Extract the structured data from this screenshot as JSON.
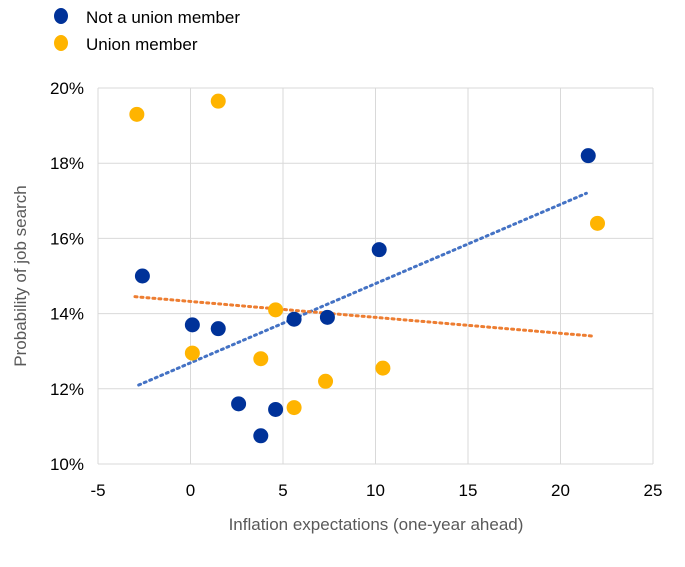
{
  "chart_data": {
    "type": "scatter",
    "title": "",
    "xlabel": "Inflation expectations (one-year ahead)",
    "ylabel": "Probability of job search",
    "xlim": [
      -5,
      25
    ],
    "ylim": [
      10,
      20
    ],
    "x_ticks": [
      -5,
      0,
      5,
      10,
      15,
      20,
      25
    ],
    "y_ticks": [
      10,
      12,
      14,
      16,
      18,
      20
    ],
    "x_tick_labels": [
      "-5",
      "0",
      "5",
      "10",
      "15",
      "20",
      "25"
    ],
    "y_tick_labels": [
      "10%",
      "12%",
      "14%",
      "16%",
      "18%",
      "20%"
    ],
    "grid": "vertical and horizontal",
    "legend_position": "top-left",
    "series": [
      {
        "name": "Not a union member",
        "color": "#003299",
        "points": [
          {
            "x": -2.6,
            "y": 15.0
          },
          {
            "x": 0.1,
            "y": 13.7
          },
          {
            "x": 1.5,
            "y": 13.6
          },
          {
            "x": 2.6,
            "y": 11.6
          },
          {
            "x": 3.8,
            "y": 10.75
          },
          {
            "x": 4.6,
            "y": 11.45
          },
          {
            "x": 5.6,
            "y": 13.85
          },
          {
            "x": 7.4,
            "y": 13.9
          },
          {
            "x": 10.2,
            "y": 15.7
          },
          {
            "x": 21.5,
            "y": 18.2
          }
        ],
        "trendline": {
          "color": "#4472C4",
          "from": {
            "x": -2.8,
            "y": 12.1
          },
          "to": {
            "x": 21.4,
            "y": 17.2
          }
        }
      },
      {
        "name": "Union member",
        "color": "#FFB400",
        "points": [
          {
            "x": -2.9,
            "y": 19.3
          },
          {
            "x": 1.5,
            "y": 19.65
          },
          {
            "x": 0.1,
            "y": 12.95
          },
          {
            "x": 3.8,
            "y": 12.8
          },
          {
            "x": 4.6,
            "y": 14.1
          },
          {
            "x": 5.6,
            "y": 11.5
          },
          {
            "x": 7.3,
            "y": 12.2
          },
          {
            "x": 10.4,
            "y": 12.55
          },
          {
            "x": 22.0,
            "y": 16.4
          }
        ],
        "trendline": {
          "color": "#ED7D31",
          "from": {
            "x": -3.0,
            "y": 14.45
          },
          "to": {
            "x": 21.8,
            "y": 13.4
          }
        }
      }
    ]
  }
}
